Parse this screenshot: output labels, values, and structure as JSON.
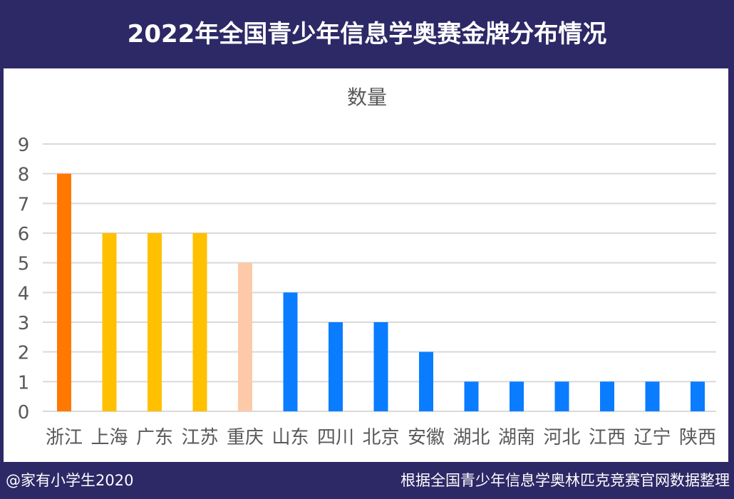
{
  "title": "2022年全国青少年信息学奥赛金牌分布情况",
  "footer": {
    "left": "@家有小学生2020",
    "right": "根据全国青少年信息学奥林匹克竞赛官网数据整理"
  },
  "colors": {
    "background": "#2d2866",
    "panel": "#ffffff",
    "grid": "#d9d9d9",
    "text": "#595959"
  },
  "chart_data": {
    "type": "bar",
    "title": "数量",
    "categories": [
      "浙江",
      "上海",
      "广东",
      "江苏",
      "重庆",
      "山东",
      "四川",
      "北京",
      "安徽",
      "湖北",
      "湖南",
      "河北",
      "江西",
      "辽宁",
      "陕西"
    ],
    "values": [
      8,
      6,
      6,
      6,
      5,
      4,
      3,
      3,
      2,
      1,
      1,
      1,
      1,
      1,
      1
    ],
    "bar_colors": [
      "#ff7800",
      "#ffc000",
      "#ffc000",
      "#ffc000",
      "#fccaa8",
      "#0a7cff",
      "#0a7cff",
      "#0a7cff",
      "#0a7cff",
      "#0a7cff",
      "#0a7cff",
      "#0a7cff",
      "#0a7cff",
      "#0a7cff",
      "#0a7cff"
    ],
    "ylim": [
      0,
      9
    ],
    "yticks": [
      0,
      1,
      2,
      3,
      4,
      5,
      6,
      7,
      8,
      9
    ],
    "grid": true,
    "legend": "none"
  }
}
